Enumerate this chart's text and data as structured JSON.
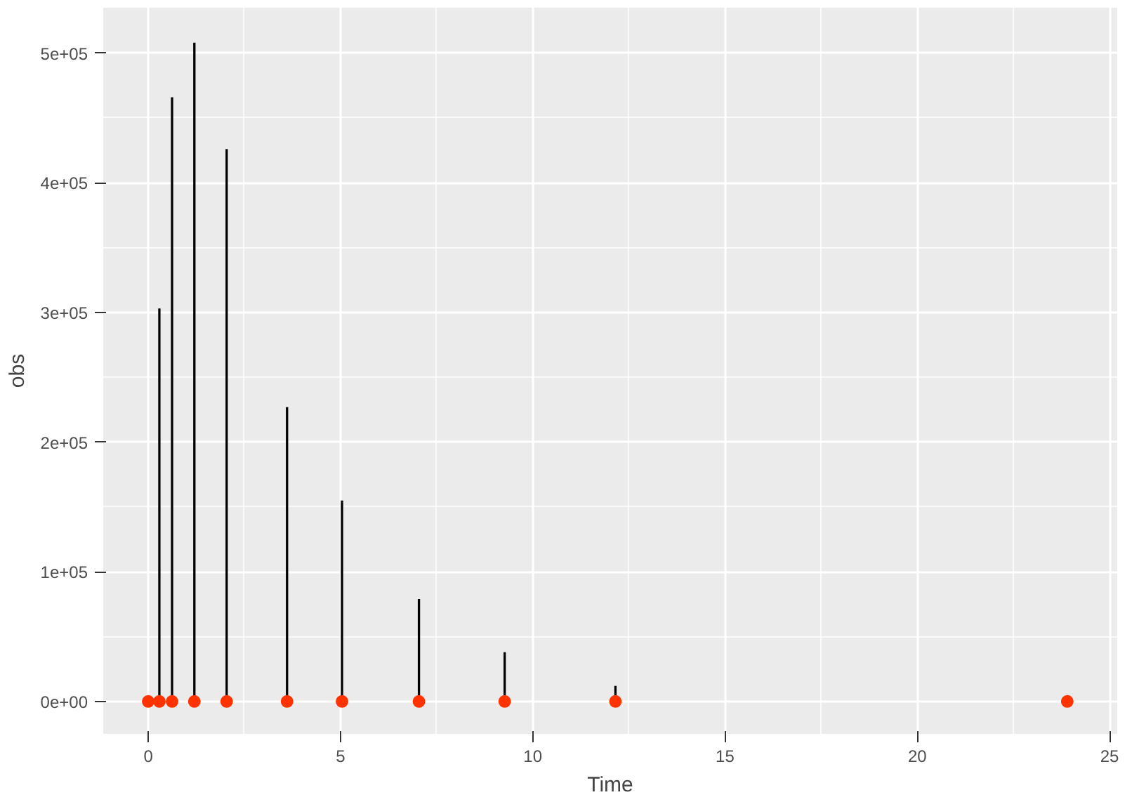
{
  "chart_data": {
    "type": "bar",
    "xlabel": "Time",
    "ylabel": "obs",
    "x": [
      0,
      0.29,
      0.62,
      1.2,
      2.04,
      3.61,
      5.04,
      7.04,
      9.27,
      12.15,
      23.9
    ],
    "series": [
      {
        "color": "#000000",
        "values": [
          0,
          303000,
          466000,
          508000,
          426000,
          227000,
          155000,
          79000,
          38000,
          12000,
          0
        ]
      },
      {
        "type": "scatter",
        "color": "#ff3300",
        "marker": "circle",
        "values": [
          0,
          0,
          0,
          0,
          0,
          0,
          0,
          0,
          0,
          0,
          0
        ]
      }
    ],
    "xlim": [
      -1.17,
      25.2
    ],
    "xticks": [
      0,
      5,
      10,
      15,
      20,
      25
    ],
    "ylim": [
      -25000,
      535000
    ],
    "yticks": [
      {
        "value": 0,
        "label": "0e+00"
      },
      {
        "value": 100000,
        "label": "1e+05"
      },
      {
        "value": 200000,
        "label": "2e+05"
      },
      {
        "value": 300000,
        "label": "3e+05"
      },
      {
        "value": 400000,
        "label": "4e+05"
      },
      {
        "value": 500000,
        "label": "5e+05"
      }
    ],
    "grid": true
  }
}
